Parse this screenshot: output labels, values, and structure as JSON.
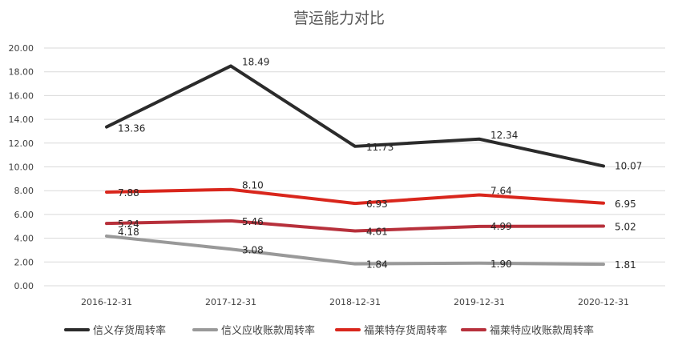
{
  "chart_data": {
    "type": "line",
    "title": "营运能力对比",
    "xlabel": "",
    "ylabel": "",
    "categories": [
      "2016-12-31",
      "2017-12-31",
      "2018-12-31",
      "2019-12-31",
      "2020-12-31"
    ],
    "ylim": [
      0,
      20
    ],
    "yticks": [
      "0.00",
      "2.00",
      "4.00",
      "6.00",
      "8.00",
      "10.00",
      "12.00",
      "14.00",
      "16.00",
      "18.00",
      "20.00"
    ],
    "grid": true,
    "legend_position": "bottom",
    "series": [
      {
        "name": "信义存货周转率",
        "color": "#2b2b2b",
        "values": [
          13.36,
          18.49,
          11.73,
          12.34,
          10.07
        ],
        "labels": [
          "13.36",
          "18.49",
          "11.73",
          "12.34",
          "10.07"
        ]
      },
      {
        "name": "信义应收账款周转率",
        "color": "#999999",
        "values": [
          4.18,
          3.08,
          1.84,
          1.9,
          1.81
        ],
        "labels": [
          "4.18",
          "3.08",
          "1.84",
          "1.90",
          "1.81"
        ]
      },
      {
        "name": "福莱特存货周转率",
        "color": "#d9261c",
        "values": [
          7.88,
          8.1,
          6.93,
          7.64,
          6.95
        ],
        "labels": [
          "7.88",
          "8.10",
          "6.93",
          "7.64",
          "6.95"
        ]
      },
      {
        "name": "福莱特应收账款周转率",
        "color": "#b7303b",
        "values": [
          5.24,
          5.46,
          4.61,
          4.99,
          5.02
        ],
        "labels": [
          "5.24",
          "5.46",
          "4.61",
          "4.99",
          "5.02"
        ]
      }
    ]
  }
}
